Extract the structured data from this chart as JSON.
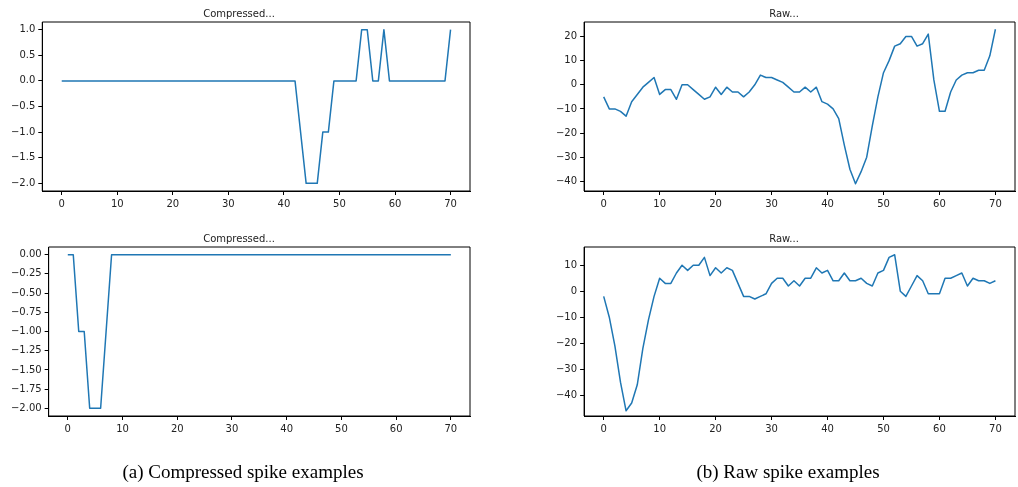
{
  "chart_data": [
    {
      "type": "line",
      "title": "Compressed...",
      "x": [
        0,
        42,
        44,
        46,
        47,
        48,
        49,
        53,
        54,
        55,
        56,
        57,
        58,
        59,
        69,
        70
      ],
      "values": [
        0,
        0,
        -2,
        -2,
        -1,
        -1,
        0,
        0,
        1,
        1,
        0,
        0,
        1,
        0,
        0,
        1
      ],
      "color": "#1f77b4",
      "xlim": [
        -3.5,
        73.5
      ],
      "ylim": [
        -2.15,
        1.15
      ],
      "xticks": [
        0,
        10,
        20,
        30,
        40,
        50,
        60,
        70
      ],
      "yticks": [
        {
          "value": -2,
          "label": "−2.0"
        },
        {
          "value": -1.5,
          "label": "−1.5"
        },
        {
          "value": -1,
          "label": "−1.0"
        },
        {
          "value": -0.5,
          "label": "−0.5"
        },
        {
          "value": 0,
          "label": "0.0"
        },
        {
          "value": 0.5,
          "label": "0.5"
        },
        {
          "value": 1,
          "label": "1.0"
        }
      ]
    },
    {
      "type": "line",
      "title": "Raw...",
      "x": [
        0,
        1,
        2,
        3,
        4,
        5,
        6,
        7,
        8,
        9,
        10,
        11,
        12,
        13,
        14,
        15,
        16,
        17,
        18,
        19,
        20,
        21,
        22,
        23,
        24,
        25,
        26,
        27,
        28,
        29,
        30,
        31,
        32,
        33,
        34,
        35,
        36,
        37,
        38,
        39,
        40,
        41,
        42,
        43,
        44,
        45,
        46,
        47,
        48,
        49,
        50,
        51,
        52,
        53,
        54,
        55,
        56,
        57,
        58,
        59,
        60,
        61,
        62,
        63,
        64,
        65,
        66,
        67,
        68,
        69,
        70
      ],
      "values": [
        -5,
        -10,
        -10,
        -11,
        -13,
        -7,
        -4,
        -1,
        1,
        3,
        -4,
        -2,
        -2,
        -6,
        0,
        0,
        -2,
        -4,
        -6,
        -5,
        -1,
        -4,
        -1,
        -3,
        -3,
        -5,
        -3,
        0,
        4,
        3,
        3,
        2,
        1,
        -1,
        -3,
        -3,
        -1,
        -3,
        -1,
        -7,
        -8,
        -10,
        -14,
        -25,
        -35,
        -41,
        -36,
        -30,
        -17,
        -5,
        5,
        10,
        16,
        17,
        20,
        20,
        16,
        17,
        21,
        2,
        -11,
        -11,
        -3,
        2,
        4,
        5,
        5,
        6,
        6,
        12,
        23
      ],
      "color": "#1f77b4",
      "xlim": [
        -3.5,
        73.5
      ],
      "ylim": [
        -44,
        26
      ],
      "xticks": [
        0,
        10,
        20,
        30,
        40,
        50,
        60,
        70
      ],
      "yticks": [
        {
          "value": -40,
          "label": "−40"
        },
        {
          "value": -30,
          "label": "−30"
        },
        {
          "value": -20,
          "label": "−20"
        },
        {
          "value": -10,
          "label": "−10"
        },
        0,
        10,
        20
      ]
    },
    {
      "type": "line",
      "title": "Compressed...",
      "x": [
        0,
        1,
        2,
        3,
        4,
        6,
        8,
        70
      ],
      "values": [
        0,
        0,
        -1,
        -1,
        -2,
        -2,
        0,
        0
      ],
      "color": "#1f77b4",
      "xlim": [
        -3.5,
        73.5
      ],
      "ylim": [
        -2.1,
        0.1
      ],
      "xticks": [
        0,
        10,
        20,
        30,
        40,
        50,
        60,
        70
      ],
      "yticks": [
        {
          "value": -2,
          "label": "−2.00"
        },
        {
          "value": -1.75,
          "label": "−1.75"
        },
        {
          "value": -1.5,
          "label": "−1.50"
        },
        {
          "value": -1.25,
          "label": "−1.25"
        },
        {
          "value": -1,
          "label": "−1.00"
        },
        {
          "value": -0.75,
          "label": "−0.75"
        },
        {
          "value": -0.5,
          "label": "−0.50"
        },
        {
          "value": -0.25,
          "label": "−0.25"
        },
        {
          "value": 0,
          "label": "0.00"
        }
      ],
      "annotations": [
        "(a) Compressed spike examples"
      ]
    },
    {
      "type": "line",
      "title": "Raw...",
      "x": [
        0,
        1,
        2,
        3,
        4,
        5,
        6,
        7,
        8,
        9,
        10,
        11,
        12,
        13,
        14,
        15,
        16,
        17,
        18,
        19,
        20,
        21,
        22,
        23,
        24,
        25,
        26,
        27,
        28,
        29,
        30,
        31,
        32,
        33,
        34,
        35,
        36,
        37,
        38,
        39,
        40,
        41,
        42,
        43,
        44,
        45,
        46,
        47,
        48,
        49,
        50,
        51,
        52,
        53,
        54,
        55,
        56,
        57,
        58,
        59,
        60,
        61,
        62,
        63,
        64,
        65,
        66,
        67,
        68,
        69,
        70
      ],
      "values": [
        -2,
        -10,
        -21,
        -35,
        -46,
        -43,
        -36,
        -22,
        -11,
        -2,
        5,
        3,
        3,
        7,
        10,
        8,
        10,
        10,
        13,
        6,
        9,
        7,
        9,
        8,
        3,
        -2,
        -2,
        -3,
        -2,
        -1,
        3,
        5,
        5,
        2,
        4,
        2,
        5,
        5,
        9,
        7,
        8,
        4,
        4,
        7,
        4,
        4,
        5,
        3,
        2,
        7,
        8,
        13,
        14,
        0,
        -2,
        2,
        6,
        4,
        -1,
        -1,
        -1,
        5,
        5,
        6,
        7,
        2,
        5,
        4,
        4,
        3,
        4
      ],
      "color": "#1f77b4",
      "xlim": [
        -3.5,
        73.5
      ],
      "ylim": [
        -48,
        17
      ],
      "xticks": [
        0,
        10,
        20,
        30,
        40,
        50,
        60,
        70
      ],
      "yticks": [
        {
          "value": -40,
          "label": "−40"
        },
        {
          "value": -30,
          "label": "−30"
        },
        {
          "value": -20,
          "label": "−20"
        },
        {
          "value": -10,
          "label": "−10"
        },
        0,
        10
      ],
      "annotations": [
        "(b) Raw spike examples"
      ]
    }
  ]
}
